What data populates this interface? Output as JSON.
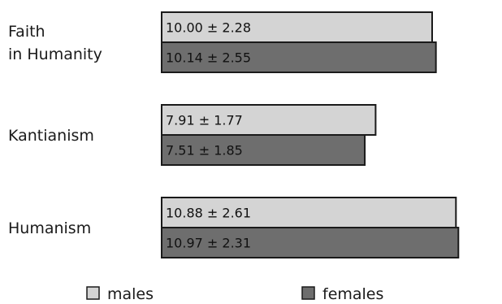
{
  "chart_data": {
    "type": "bar",
    "orientation": "horizontal",
    "categories": [
      [
        "Faith",
        "in Humanity"
      ],
      [
        "Kantianism"
      ],
      [
        "Humanism"
      ]
    ],
    "series": [
      {
        "name": "males",
        "color": "#d4d4d4",
        "values": [
          10.0,
          7.91,
          10.88
        ],
        "labels": [
          "10.00 ± 2.28",
          "7.91 ± 1.77",
          "10.88 ± 2.61"
        ]
      },
      {
        "name": "females",
        "color": "#6e6e6e",
        "values": [
          10.14,
          7.51,
          10.97
        ],
        "labels": [
          "10.14 ± 2.55",
          "7.51 ± 1.85",
          "10.97 ± 2.31"
        ]
      }
    ],
    "legend": {
      "position": "bottom",
      "items": [
        "males",
        "females"
      ]
    },
    "grid": false,
    "title": "",
    "xlabel": "",
    "ylabel": ""
  }
}
